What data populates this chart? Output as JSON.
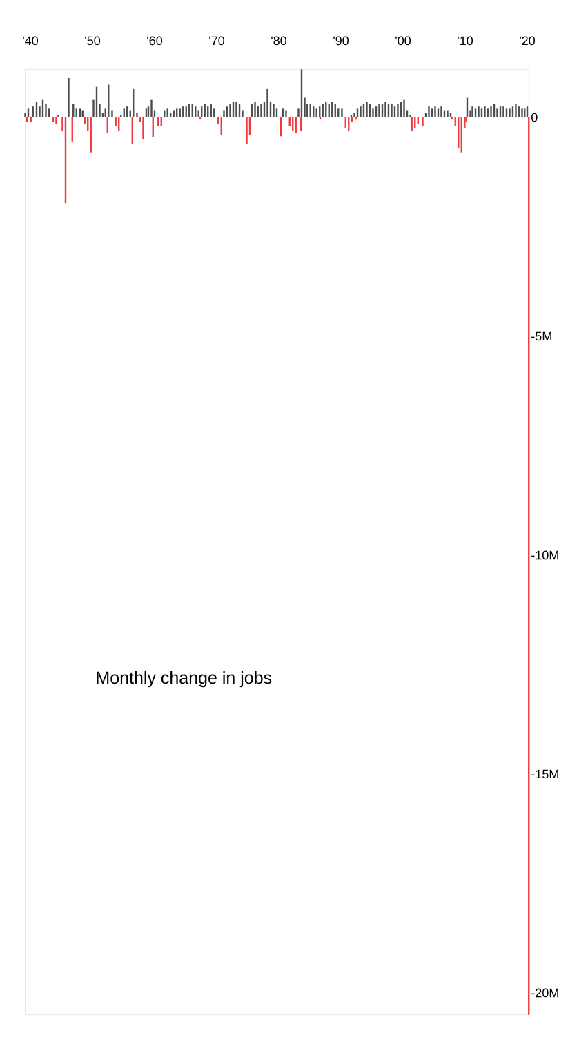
{
  "chart_data": {
    "type": "bar",
    "annotations": [
      "Monthly change in jobs"
    ],
    "xticks": [
      {
        "value": "1940",
        "label": "'40"
      },
      {
        "value": "1950",
        "label": "'50"
      },
      {
        "value": "1960",
        "label": "'60"
      },
      {
        "value": "1970",
        "label": "'70"
      },
      {
        "value": "1980",
        "label": "'80"
      },
      {
        "value": "1990",
        "label": "'90"
      },
      {
        "value": "2000",
        "label": "'00"
      },
      {
        "value": "2010",
        "label": "'10"
      },
      {
        "value": "2020",
        "label": "'20"
      }
    ],
    "xlim": [
      "1939-03",
      "2020-04"
    ],
    "ylim": [
      -20.5,
      1.1
    ],
    "yticks": [
      0,
      {
        "value": -5,
        "label": "-5M"
      },
      {
        "value": -10,
        "label": "-10M"
      },
      {
        "value": -15,
        "label": "-15M"
      },
      {
        "value": -20,
        "label": "-20M"
      }
    ],
    "series": [
      {
        "color": "#4d4d4d",
        "x": [
          "1939-03",
          "1939-09",
          "1940-06",
          "1941-01",
          "1941-07",
          "1942-01",
          "1942-07",
          "1943-01",
          "1944-07",
          "1946-03",
          "1946-12",
          "1947-06",
          "1948-01",
          "1948-06",
          "1950-03",
          "1950-09",
          "1951-03",
          "1951-09",
          "1952-02",
          "1952-08",
          "1953-03",
          "1954-08",
          "1955-02",
          "1955-08",
          "1956-02",
          "1956-08",
          "1957-03",
          "1958-09",
          "1959-01",
          "1959-07",
          "1960-01",
          "1961-08",
          "1962-02",
          "1962-08",
          "1963-02",
          "1963-08",
          "1964-02",
          "1964-08",
          "1965-02",
          "1965-08",
          "1966-02",
          "1966-08",
          "1967-02",
          "1967-08",
          "1968-02",
          "1968-08",
          "1969-02",
          "1969-08",
          "1971-03",
          "1971-09",
          "1972-03",
          "1972-09",
          "1973-03",
          "1973-09",
          "1974-03",
          "1975-09",
          "1976-03",
          "1976-09",
          "1977-03",
          "1977-09",
          "1978-03",
          "1978-09",
          "1979-03",
          "1979-09",
          "1980-09",
          "1981-03",
          "1983-03",
          "1983-09",
          "1984-03",
          "1984-08",
          "1985-02",
          "1985-08",
          "1986-02",
          "1986-08",
          "1987-02",
          "1987-08",
          "1988-02",
          "1988-08",
          "1989-02",
          "1989-08",
          "1990-03",
          "1991-09",
          "1992-03",
          "1992-09",
          "1993-03",
          "1993-09",
          "1994-03",
          "1994-09",
          "1995-03",
          "1995-09",
          "1996-03",
          "1996-09",
          "1997-03",
          "1997-09",
          "1998-03",
          "1998-09",
          "1999-03",
          "1999-09",
          "2000-03",
          "2000-09",
          "2001-03",
          "2003-09",
          "2004-03",
          "2004-09",
          "2005-03",
          "2005-09",
          "2006-03",
          "2006-09",
          "2007-03",
          "2007-09",
          "2010-05",
          "2010-11",
          "2011-03",
          "2011-09",
          "2012-03",
          "2012-09",
          "2013-03",
          "2013-09",
          "2014-03",
          "2014-09",
          "2015-03",
          "2015-09",
          "2016-03",
          "2016-09",
          "2017-03",
          "2017-09",
          "2018-03",
          "2018-09",
          "2019-03",
          "2019-08",
          "2020-01"
        ],
        "values": [
          0.1,
          0.2,
          0.25,
          0.35,
          0.25,
          0.4,
          0.3,
          0.2,
          0.05,
          0.9,
          0.3,
          0.2,
          0.2,
          0.15,
          0.4,
          0.7,
          0.3,
          0.1,
          0.2,
          0.75,
          0.15,
          0.05,
          0.2,
          0.25,
          0.15,
          0.65,
          0.1,
          0.2,
          0.25,
          0.4,
          0.15,
          0.15,
          0.2,
          0.1,
          0.15,
          0.2,
          0.2,
          0.25,
          0.25,
          0.3,
          0.3,
          0.25,
          0.15,
          0.25,
          0.3,
          0.25,
          0.3,
          0.2,
          0.15,
          0.25,
          0.3,
          0.35,
          0.35,
          0.3,
          0.15,
          0.3,
          0.35,
          0.25,
          0.3,
          0.35,
          0.65,
          0.35,
          0.3,
          0.2,
          0.2,
          0.15,
          0.2,
          1.1,
          0.45,
          0.3,
          0.3,
          0.25,
          0.2,
          0.25,
          0.3,
          0.35,
          0.3,
          0.35,
          0.3,
          0.2,
          0.2,
          0.05,
          0.1,
          0.2,
          0.25,
          0.3,
          0.35,
          0.3,
          0.2,
          0.25,
          0.3,
          0.3,
          0.35,
          0.3,
          0.3,
          0.25,
          0.3,
          0.35,
          0.4,
          0.15,
          0.05,
          0.1,
          0.25,
          0.2,
          0.25,
          0.2,
          0.25,
          0.15,
          0.15,
          0.1,
          0.45,
          0.15,
          0.25,
          0.2,
          0.25,
          0.2,
          0.25,
          0.2,
          0.25,
          0.3,
          0.2,
          0.25,
          0.25,
          0.2,
          0.2,
          0.25,
          0.3,
          0.25,
          0.2,
          0.2,
          0.25
        ]
      },
      {
        "color": "#f0393c",
        "x": [
          "1939-06",
          "1940-02",
          "1943-09",
          "1944-03",
          "1945-03",
          "1945-09",
          "1946-10",
          "1948-10",
          "1949-04",
          "1949-10",
          "1952-06",
          "1953-10",
          "1954-04",
          "1956-06",
          "1957-09",
          "1958-03",
          "1959-10",
          "1960-08",
          "1961-02",
          "1967-05",
          "1970-04",
          "1970-10",
          "1974-11",
          "1975-05",
          "1980-05",
          "1981-10",
          "1982-04",
          "1982-10",
          "1983-08",
          "1986-09",
          "1990-10",
          "1991-04",
          "1991-10",
          "1992-06",
          "2001-06",
          "2001-12",
          "2002-06",
          "2003-03",
          "2007-12",
          "2008-06",
          "2008-12",
          "2009-06",
          "2009-12",
          "2010-03",
          "2020-04"
        ],
        "values": [
          -0.1,
          -0.1,
          -0.1,
          -0.15,
          -0.3,
          -1.96,
          -0.55,
          -0.15,
          -0.3,
          -0.8,
          -0.35,
          -0.2,
          -0.3,
          -0.6,
          -0.1,
          -0.5,
          -0.45,
          -0.2,
          -0.2,
          -0.05,
          -0.15,
          -0.4,
          -0.6,
          -0.4,
          -0.43,
          -0.2,
          -0.3,
          -0.35,
          -0.3,
          -0.05,
          -0.25,
          -0.3,
          -0.1,
          -0.05,
          -0.3,
          -0.25,
          -0.15,
          -0.2,
          -0.05,
          -0.2,
          -0.7,
          -0.8,
          -0.25,
          -0.1,
          -20.5
        ]
      }
    ]
  }
}
